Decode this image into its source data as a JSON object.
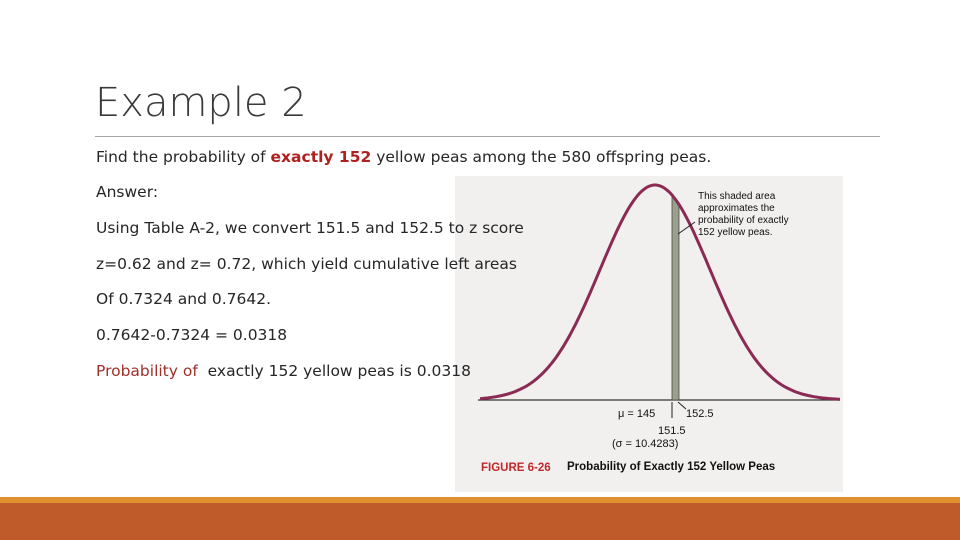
{
  "title": "Example 2",
  "body": {
    "line1": {
      "before": "Find the probability of ",
      "highlight": "exactly 152",
      "after": " yellow peas among the 580 offspring peas."
    },
    "answer_label": "Answer:",
    "line3": "Using Table A-2, we convert 151.5 and 152.5 to z score",
    "line4": "z=0.62 and z= 0.72, which yield cumulative left areas",
    "line5": "Of 0.7324 and 0.7642.",
    "line6": "0.7642-0.7324 = 0.0318",
    "conclusion": {
      "highlight": "Probability of",
      "rest": "  exactly 152 yellow peas is 0.0318"
    }
  },
  "figure": {
    "annotation": [
      "This shaded area",
      "approximates the",
      "probability of exactly",
      "152 yellow peas."
    ],
    "mean_label": "μ = 145",
    "upper_label": "152.5",
    "lower_label": "151.5",
    "sigma_label": "(σ = 10.4283)",
    "figure_number": "FIGURE 6-26",
    "caption": "Probability of Exactly 152 Yellow Peas"
  }
}
